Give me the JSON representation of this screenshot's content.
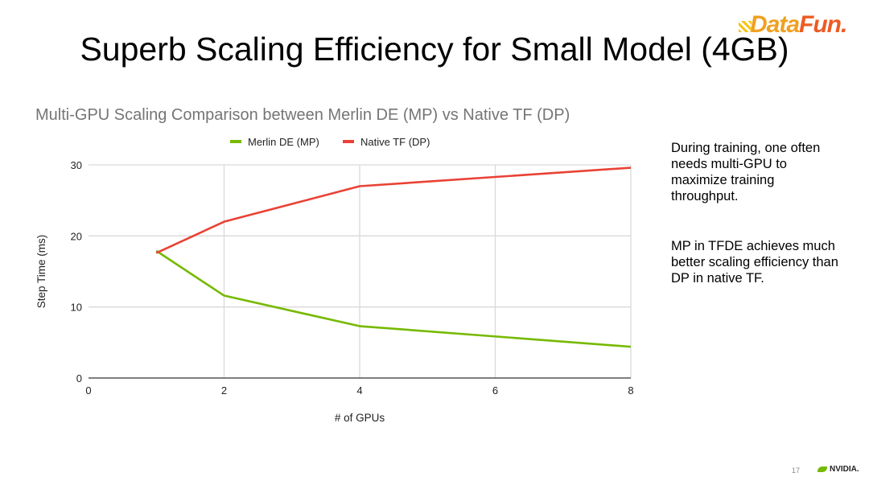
{
  "slide": {
    "title": "Superb Scaling Efficiency for Small Model (4GB)",
    "logo_text": "DataFun.",
    "page_number": "17",
    "footer_brand": "NVIDIA.",
    "notes": [
      "During training, one often needs multi-GPU to maximize training throughput.",
      "MP in TFDE achieves much better scaling efficiency than DP in native TF."
    ]
  },
  "chart_data": {
    "type": "line",
    "title": "Multi-GPU Scaling Comparison between Merlin DE (MP) vs Native TF (DP)",
    "xlabel": "# of GPUs",
    "ylabel": "Step Time (ms)",
    "xlim": [
      0,
      8
    ],
    "ylim": [
      0,
      30
    ],
    "xticks": [
      0,
      2,
      4,
      6,
      8
    ],
    "yticks": [
      0,
      10,
      20,
      30
    ],
    "grid": true,
    "legend": "top",
    "x": [
      1,
      2,
      4,
      8
    ],
    "series": [
      {
        "name": "Merlin DE (MP)",
        "color": "#76b900",
        "values": [
          17.9,
          11.6,
          7.3,
          4.4
        ]
      },
      {
        "name": "Native TF (DP)",
        "color": "#e94235",
        "values": [
          17.6,
          22.0,
          27.0,
          29.6
        ]
      }
    ]
  }
}
